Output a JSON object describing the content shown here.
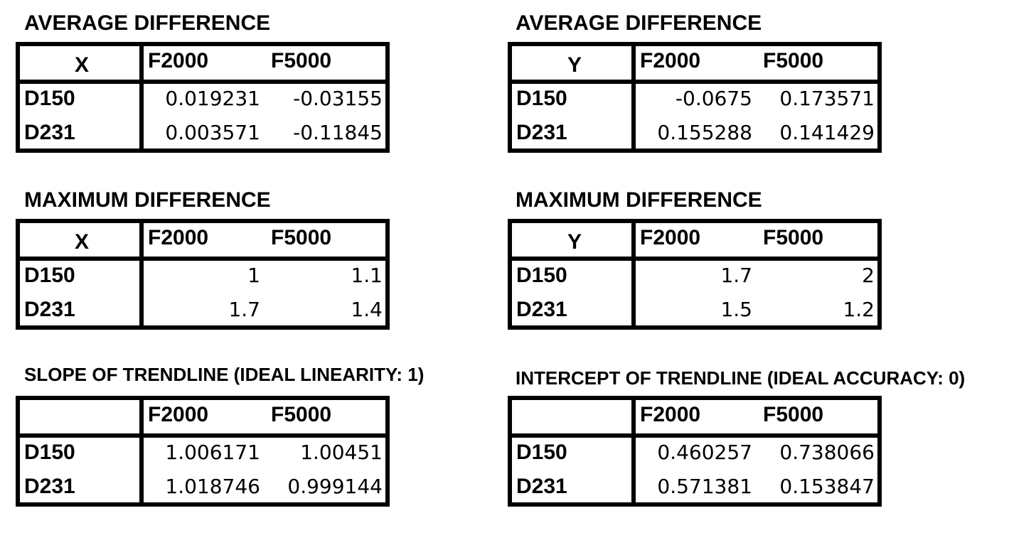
{
  "panels": {
    "avg_x": {
      "title": "AVERAGE DIFFERENCE",
      "corner": "X",
      "col1": "F2000",
      "col2": "F5000",
      "rows": [
        {
          "label": "D150",
          "v1": "0.019231",
          "v2": "-0.03155"
        },
        {
          "label": "D231",
          "v1": "0.003571",
          "v2": "-0.11845"
        }
      ]
    },
    "avg_y": {
      "title": "AVERAGE DIFFERENCE",
      "corner": "Y",
      "col1": "F2000",
      "col2": "F5000",
      "rows": [
        {
          "label": "D150",
          "v1": "-0.0675",
          "v2": "0.173571"
        },
        {
          "label": "D231",
          "v1": "0.155288",
          "v2": "0.141429"
        }
      ]
    },
    "max_x": {
      "title": "MAXIMUM DIFFERENCE",
      "corner": "X",
      "col1": "F2000",
      "col2": "F5000",
      "rows": [
        {
          "label": "D150",
          "v1": "1",
          "v2": "1.1"
        },
        {
          "label": "D231",
          "v1": "1.7",
          "v2": "1.4"
        }
      ]
    },
    "max_y": {
      "title": "MAXIMUM DIFFERENCE",
      "corner": "Y",
      "col1": "F2000",
      "col2": "F5000",
      "rows": [
        {
          "label": "D150",
          "v1": "1.7",
          "v2": "2"
        },
        {
          "label": "D231",
          "v1": "1.5",
          "v2": "1.2"
        }
      ]
    },
    "slope": {
      "title": "SLOPE OF TRENDLINE (IDEAL LINEARITY: 1)",
      "corner": "",
      "col1": "F2000",
      "col2": "F5000",
      "rows": [
        {
          "label": "D150",
          "v1": "1.006171",
          "v2": "1.00451"
        },
        {
          "label": "D231",
          "v1": "1.018746",
          "v2": "0.999144"
        }
      ]
    },
    "intercept": {
      "title": "INTERCEPT OF TRENDLINE (IDEAL ACCURACY: 0)",
      "corner": "",
      "col1": "F2000",
      "col2": "F5000",
      "rows": [
        {
          "label": "D150",
          "v1": "0.460257",
          "v2": "0.738066"
        },
        {
          "label": "D231",
          "v1": "0.571381",
          "v2": "0.153847"
        }
      ]
    }
  }
}
